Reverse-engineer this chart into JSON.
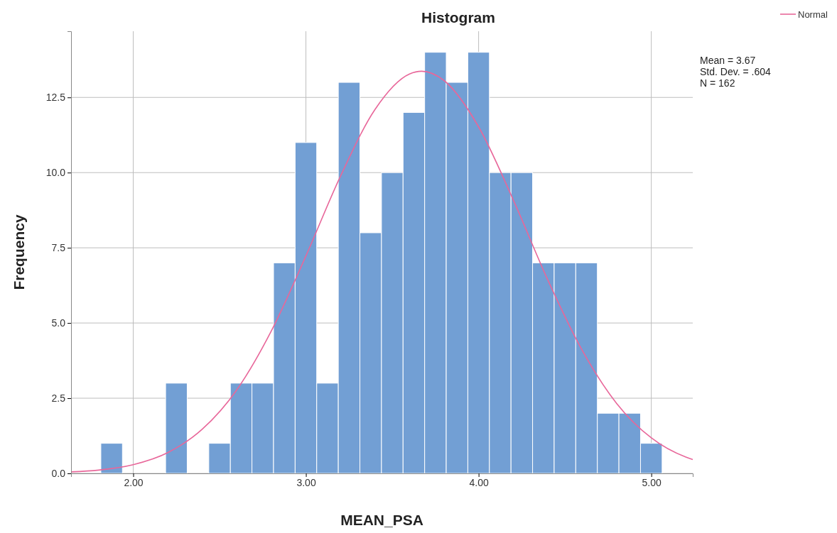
{
  "chart_data": {
    "type": "histogram",
    "title": "Histogram",
    "xlabel": "MEAN_PSA",
    "ylabel": "Frequency",
    "bins": [
      1.8125,
      1.9375,
      2.0625,
      2.1875,
      2.3125,
      2.4375,
      2.5625,
      2.6875,
      2.8125,
      2.9375,
      3.0625,
      3.1875,
      3.3125,
      3.4375,
      3.5625,
      3.6875,
      3.8125,
      3.9375,
      4.0625,
      4.1875,
      4.3125,
      4.4375,
      4.5625,
      4.6875,
      4.8125,
      4.9375,
      5.0625
    ],
    "series": [
      {
        "color": "#729fd4",
        "values": [
          1,
          0,
          0,
          3,
          0,
          1,
          3,
          3,
          7,
          11,
          3,
          13,
          8,
          10,
          12,
          14,
          13,
          14,
          10,
          10,
          7,
          7,
          7,
          2,
          2,
          1
        ]
      },
      {
        "type": "line",
        "name": "Normal",
        "color": "#e8679a",
        "x": [
          1.64,
          1.8,
          2.0,
          2.2,
          2.4,
          2.6,
          2.8,
          3.0,
          3.2,
          3.4,
          3.6,
          3.67,
          3.8,
          4.0,
          4.2,
          4.4,
          4.6,
          4.8,
          5.0,
          5.2,
          5.24
        ],
        "values": [
          0.05,
          0.11,
          0.29,
          0.69,
          1.47,
          2.78,
          4.74,
          7.23,
          9.88,
          12.1,
          13.28,
          13.37,
          13.06,
          11.52,
          9.1,
          6.44,
          4.09,
          2.32,
          1.18,
          0.54,
          0.46
        ]
      }
    ],
    "xlim": [
      1.64,
      5.24
    ],
    "ylim": [
      0,
      14.7
    ],
    "xticks": [
      {
        "value": 2,
        "label": "2.00"
      },
      {
        "value": 3,
        "label": "3.00"
      },
      {
        "value": 4,
        "label": "4.00"
      },
      {
        "value": 5,
        "label": "5.00"
      }
    ],
    "yticks": [
      {
        "value": 0,
        "label": "0.0"
      },
      {
        "value": 2.5,
        "label": "2.5"
      },
      {
        "value": 5,
        "label": "5.0"
      },
      {
        "value": 7.5,
        "label": "7.5"
      },
      {
        "value": 10,
        "label": "10.0"
      },
      {
        "value": 12.5,
        "label": "12.5"
      }
    ],
    "grid": true,
    "legend": "top right",
    "line_style": "solid",
    "annotations": [
      "Mean = 3.67",
      "Std. Dev. = .604",
      "N = 162"
    ]
  }
}
